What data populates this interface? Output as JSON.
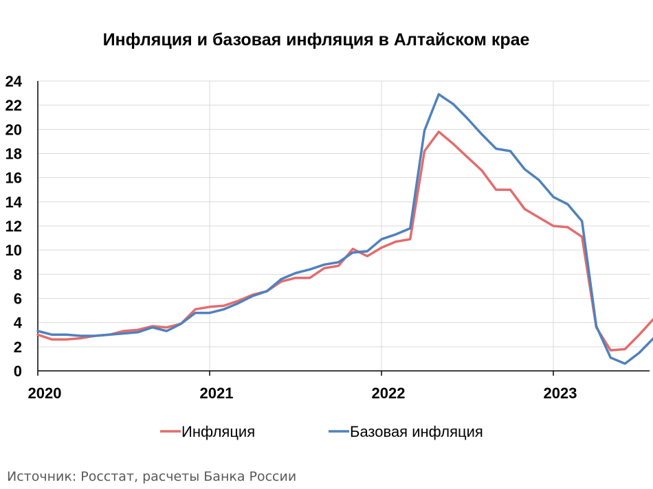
{
  "title": "Инфляция и базовая инфляция в Алтайском крае",
  "source": "Источник: Росстат, расчеты Банка России",
  "chart_data": {
    "type": "line",
    "title": "Инфляция и базовая инфляция в Алтайском крае",
    "xlabel": "",
    "ylabel": "",
    "ylim": [
      0,
      24
    ],
    "yticks": [
      "0",
      "2",
      "4",
      "6",
      "8",
      "10",
      "12",
      "14",
      "16",
      "18",
      "20",
      "22",
      "24"
    ],
    "xticks": [
      "2020",
      "2021",
      "2022",
      "2023"
    ],
    "x": [
      "2020-01",
      "2020-02",
      "2020-03",
      "2020-04",
      "2020-05",
      "2020-06",
      "2020-07",
      "2020-08",
      "2020-09",
      "2020-10",
      "2020-11",
      "2020-12",
      "2021-01",
      "2021-02",
      "2021-03",
      "2021-04",
      "2021-05",
      "2021-06",
      "2021-07",
      "2021-08",
      "2021-09",
      "2021-10",
      "2021-11",
      "2021-12",
      "2022-01",
      "2022-02",
      "2022-03",
      "2022-04",
      "2022-05",
      "2022-06",
      "2022-07",
      "2022-08",
      "2022-09",
      "2022-10",
      "2022-11",
      "2022-12",
      "2023-01",
      "2023-02",
      "2023-03",
      "2023-04",
      "2023-05",
      "2023-06",
      "2023-07",
      "2023-08"
    ],
    "grid": true,
    "legend_position": "bottom",
    "series": [
      {
        "name": "Инфляция",
        "color": "#e46c6c",
        "values": [
          3.0,
          2.6,
          2.6,
          2.7,
          2.9,
          3.0,
          3.3,
          3.4,
          3.7,
          3.6,
          3.9,
          5.1,
          5.3,
          5.4,
          5.8,
          6.3,
          6.6,
          7.4,
          7.7,
          7.7,
          8.5,
          8.7,
          10.1,
          9.5,
          10.2,
          10.7,
          10.9,
          18.2,
          19.8,
          18.8,
          17.7,
          16.6,
          15.0,
          15.0,
          13.4,
          12.7,
          12.0,
          11.9,
          11.1,
          3.6,
          1.7,
          1.8,
          3.0,
          4.3
        ]
      },
      {
        "name": "Базовая инфляция",
        "color": "#4f81bd",
        "values": [
          3.3,
          3.0,
          3.0,
          2.9,
          2.9,
          3.0,
          3.1,
          3.2,
          3.6,
          3.3,
          3.9,
          4.8,
          4.8,
          5.1,
          5.6,
          6.2,
          6.6,
          7.6,
          8.1,
          8.4,
          8.8,
          9.0,
          9.8,
          9.9,
          10.9,
          11.3,
          11.8,
          19.9,
          22.9,
          22.1,
          20.9,
          19.6,
          18.4,
          18.2,
          16.7,
          15.8,
          14.4,
          13.8,
          12.4,
          3.7,
          1.1,
          0.6,
          1.5,
          2.7
        ]
      }
    ]
  }
}
